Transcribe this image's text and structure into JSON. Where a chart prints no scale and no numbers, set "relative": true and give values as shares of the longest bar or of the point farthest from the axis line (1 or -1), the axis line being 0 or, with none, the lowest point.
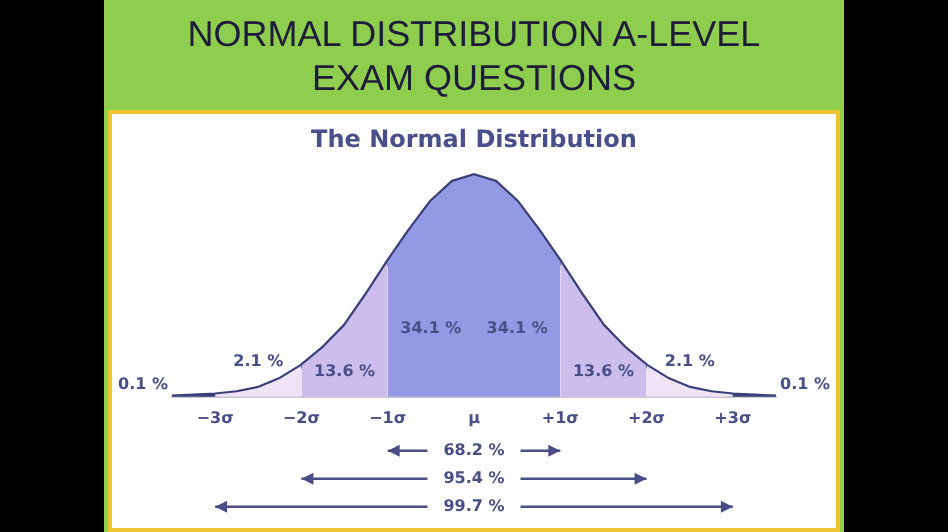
{
  "chart_data": {
    "type": "line",
    "title": "NORMAL DISTRIBUTION A-LEVEL EXAM QUESTIONS",
    "subtitle": "The Normal Distribution",
    "relative": true,
    "x": [
      -3.5,
      -3.25,
      -3,
      -2.75,
      -2.5,
      -2.25,
      -2,
      -1.75,
      -1.5,
      -1.25,
      -1,
      -0.75,
      -0.5,
      -0.25,
      0,
      0.25,
      0.5,
      0.75,
      1,
      1.25,
      1.5,
      1.75,
      2,
      2.25,
      2.5,
      2.75,
      3,
      3.25,
      3.5
    ],
    "series": [
      {
        "type": "area",
        "color": "#9499e4",
        "x": [
          -1,
          -0.75,
          -0.5,
          -0.25,
          0
        ],
        "values": [
          0.61,
          0.75,
          0.88,
          0.97,
          1
        ]
      },
      {
        "type": "area",
        "color": "#9499e4",
        "x": [
          0,
          0.25,
          0.5,
          0.75,
          1
        ],
        "values": [
          1,
          0.97,
          0.88,
          0.75,
          0.61
        ]
      },
      {
        "type": "area",
        "color": "#cbbdec",
        "x": [
          -2,
          -1.75,
          -1.5,
          -1.25,
          -1
        ],
        "values": [
          0.14,
          0.22,
          0.32,
          0.46,
          0.61
        ]
      },
      {
        "type": "area",
        "color": "#cbbdec",
        "x": [
          1,
          1.25,
          1.5,
          1.75,
          2
        ],
        "values": [
          0.61,
          0.46,
          0.32,
          0.22,
          0.14
        ]
      },
      {
        "type": "area",
        "color": "#eee4f5",
        "x": [
          -3,
          -2.75,
          -2.5,
          -2.25,
          -2
        ],
        "values": [
          0.01,
          0.02,
          0.04,
          0.08,
          0.14
        ]
      },
      {
        "type": "area",
        "color": "#eee4f5",
        "x": [
          2,
          2.25,
          2.5,
          2.75,
          3
        ],
        "values": [
          0.14,
          0.08,
          0.04,
          0.02,
          0.01
        ]
      },
      {
        "color": "#3b3f78",
        "values": [
          0,
          0.005,
          0.01,
          0.02,
          0.04,
          0.08,
          0.14,
          0.22,
          0.32,
          0.46,
          0.61,
          0.75,
          0.88,
          0.97,
          1,
          0.97,
          0.88,
          0.75,
          0.61,
          0.46,
          0.32,
          0.22,
          0.14,
          0.08,
          0.04,
          0.02,
          0.01,
          0.005,
          0
        ]
      }
    ],
    "xlim": [
      -3.5,
      3.5
    ],
    "xticks": [
      {
        "value": -3,
        "label": "−3σ"
      },
      {
        "value": -2,
        "label": "−2σ"
      },
      {
        "value": -1,
        "label": "−1σ"
      },
      {
        "value": 0,
        "label": "μ"
      },
      {
        "value": 1,
        "label": "+1σ"
      },
      {
        "value": 2,
        "label": "+2σ"
      },
      {
        "value": 3,
        "label": "+3σ"
      }
    ],
    "annotations": [
      "34.1 %",
      "34.1 %",
      "13.6 %",
      "13.6 %",
      "2.1 %",
      "2.1 %",
      "0.1 %",
      "0.1 %",
      "68.2 %",
      "95.4 %",
      "99.7 %"
    ],
    "grid": false,
    "legend": false,
    "marker": "none",
    "line_style": "solid"
  }
}
